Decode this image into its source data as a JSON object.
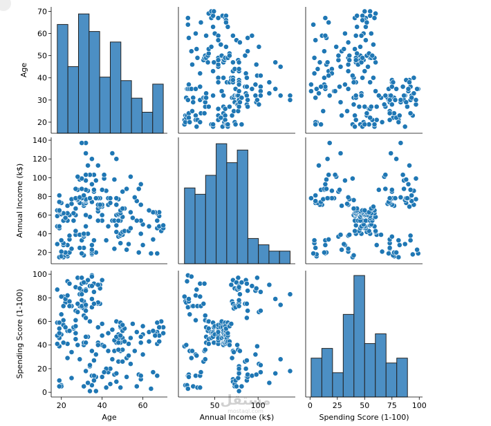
{
  "chart_data": {
    "type": "scatter",
    "kind": "pairplot",
    "variables": [
      "Age",
      "Annual Income (k$)",
      "Spending Score (1-100)"
    ],
    "marker_color": "#1f77b4",
    "bar_color": "#4c8fc4",
    "axes": {
      "Age": {
        "lim": [
          15,
          72
        ],
        "ticks": [
          20,
          30,
          40,
          50,
          60,
          70
        ],
        "xticks": [
          20,
          40,
          60
        ]
      },
      "Annual Income (k$)": {
        "lim": [
          8,
          143
        ],
        "ticks": [
          20,
          40,
          60,
          80,
          100,
          120,
          140
        ],
        "xticks": [
          50,
          100
        ]
      },
      "Spending Score (1-100)": {
        "lim": [
          -4,
          103
        ],
        "ticks": [
          0,
          20,
          40,
          60,
          80,
          100
        ],
        "xticks": [
          0,
          25,
          50,
          75,
          100
        ]
      }
    },
    "histograms": {
      "Age": {
        "edges": [
          18,
          23.2,
          28.4,
          33.6,
          38.8,
          44,
          49.2,
          54.4,
          59.6,
          64.8,
          70
        ],
        "counts": [
          31,
          19,
          34,
          29,
          16,
          26,
          15,
          10,
          6,
          14
        ],
        "ymax": 36
      },
      "Annual Income (k$)": {
        "edges": [
          15,
          27.2,
          39.4,
          51.6,
          63.8,
          76,
          88.2,
          100.4,
          112.6,
          124.8,
          137
        ],
        "counts": [
          24,
          22,
          28,
          38,
          32,
          36,
          8,
          6,
          4,
          4
        ],
        "ymax": 40
      },
      "Spending Score (1-100)": {
        "edges": [
          1,
          10.8,
          20.6,
          30.4,
          40.2,
          50,
          59.8,
          69.6,
          79.4,
          89.2,
          99
        ],
        "counts": [
          16,
          20,
          10,
          34,
          50,
          22,
          26,
          14,
          16,
          0
        ],
        "ymax": 52
      }
    },
    "points": [
      [
        19,
        15,
        39
      ],
      [
        21,
        15,
        81
      ],
      [
        20,
        16,
        6
      ],
      [
        23,
        16,
        77
      ],
      [
        31,
        17,
        40
      ],
      [
        22,
        17,
        76
      ],
      [
        35,
        18,
        6
      ],
      [
        23,
        18,
        94
      ],
      [
        64,
        19,
        3
      ],
      [
        30,
        19,
        72
      ],
      [
        67,
        19,
        14
      ],
      [
        35,
        19,
        99
      ],
      [
        58,
        20,
        15
      ],
      [
        24,
        20,
        77
      ],
      [
        37,
        20,
        13
      ],
      [
        22,
        20,
        79
      ],
      [
        35,
        21,
        35
      ],
      [
        20,
        21,
        66
      ],
      [
        52,
        23,
        29
      ],
      [
        35,
        23,
        98
      ],
      [
        46,
        24,
        35
      ],
      [
        25,
        24,
        73
      ],
      [
        31,
        25,
        5
      ],
      [
        29,
        25,
        73
      ],
      [
        35,
        28,
        14
      ],
      [
        23,
        28,
        82
      ],
      [
        60,
        28,
        32
      ],
      [
        21,
        28,
        61
      ],
      [
        53,
        29,
        31
      ],
      [
        18,
        29,
        87
      ],
      [
        49,
        30,
        4
      ],
      [
        21,
        30,
        73
      ],
      [
        42,
        33,
        4
      ],
      [
        30,
        33,
        92
      ],
      [
        36,
        33,
        14
      ],
      [
        20,
        33,
        81
      ],
      [
        65,
        34,
        17
      ],
      [
        24,
        34,
        73
      ],
      [
        48,
        37,
        26
      ],
      [
        31,
        37,
        75
      ],
      [
        49,
        38,
        35
      ],
      [
        24,
        38,
        92
      ],
      [
        50,
        39,
        36
      ],
      [
        27,
        39,
        61
      ],
      [
        29,
        39,
        28
      ],
      [
        31,
        39,
        65
      ],
      [
        49,
        40,
        55
      ],
      [
        33,
        40,
        47
      ],
      [
        31,
        40,
        42
      ],
      [
        59,
        40,
        42
      ],
      [
        50,
        42,
        52
      ],
      [
        47,
        42,
        60
      ],
      [
        51,
        43,
        54
      ],
      [
        69,
        43,
        60
      ],
      [
        27,
        43,
        45
      ],
      [
        53,
        43,
        41
      ],
      [
        70,
        46,
        50
      ],
      [
        19,
        46,
        46
      ],
      [
        67,
        46,
        51
      ],
      [
        54,
        46,
        46
      ],
      [
        63,
        48,
        51
      ],
      [
        18,
        48,
        59
      ],
      [
        43,
        48,
        50
      ],
      [
        68,
        48,
        48
      ],
      [
        19,
        48,
        59
      ],
      [
        32,
        48,
        47
      ],
      [
        70,
        49,
        55
      ],
      [
        47,
        49,
        42
      ],
      [
        60,
        50,
        49
      ],
      [
        60,
        50,
        56
      ],
      [
        59,
        54,
        47
      ],
      [
        26,
        54,
        54
      ],
      [
        45,
        54,
        53
      ],
      [
        40,
        54,
        48
      ],
      [
        23,
        54,
        52
      ],
      [
        49,
        54,
        42
      ],
      [
        57,
        54,
        51
      ],
      [
        38,
        54,
        55
      ],
      [
        67,
        54,
        41
      ],
      [
        46,
        54,
        44
      ],
      [
        21,
        54,
        57
      ],
      [
        48,
        54,
        46
      ],
      [
        55,
        57,
        58
      ],
      [
        22,
        57,
        55
      ],
      [
        34,
        58,
        60
      ],
      [
        50,
        58,
        46
      ],
      [
        68,
        59,
        55
      ],
      [
        18,
        59,
        41
      ],
      [
        48,
        60,
        49
      ],
      [
        40,
        60,
        40
      ],
      [
        32,
        60,
        42
      ],
      [
        24,
        60,
        52
      ],
      [
        47,
        60,
        47
      ],
      [
        27,
        60,
        50
      ],
      [
        48,
        61,
        42
      ],
      [
        20,
        61,
        49
      ],
      [
        23,
        62,
        41
      ],
      [
        49,
        62,
        48
      ],
      [
        67,
        62,
        59
      ],
      [
        26,
        62,
        55
      ],
      [
        49,
        62,
        56
      ],
      [
        21,
        62,
        42
      ],
      [
        66,
        63,
        50
      ],
      [
        54,
        63,
        46
      ],
      [
        68,
        63,
        43
      ],
      [
        66,
        63,
        48
      ],
      [
        65,
        63,
        52
      ],
      [
        19,
        63,
        54
      ],
      [
        38,
        64,
        42
      ],
      [
        19,
        64,
        46
      ],
      [
        18,
        65,
        48
      ],
      [
        19,
        65,
        50
      ],
      [
        63,
        65,
        43
      ],
      [
        49,
        65,
        59
      ],
      [
        51,
        67,
        43
      ],
      [
        50,
        67,
        57
      ],
      [
        27,
        67,
        56
      ],
      [
        38,
        67,
        40
      ],
      [
        40,
        69,
        58
      ],
      [
        39,
        69,
        91
      ],
      [
        23,
        70,
        29
      ],
      [
        31,
        70,
        77
      ],
      [
        43,
        71,
        35
      ],
      [
        40,
        71,
        95
      ],
      [
        59,
        71,
        11
      ],
      [
        38,
        71,
        75
      ],
      [
        47,
        71,
        9
      ],
      [
        39,
        71,
        75
      ],
      [
        25,
        72,
        34
      ],
      [
        31,
        72,
        71
      ],
      [
        20,
        73,
        5
      ],
      [
        29,
        73,
        88
      ],
      [
        44,
        73,
        7
      ],
      [
        32,
        73,
        73
      ],
      [
        19,
        74,
        10
      ],
      [
        35,
        74,
        72
      ],
      [
        57,
        75,
        5
      ],
      [
        32,
        75,
        93
      ],
      [
        28,
        76,
        40
      ],
      [
        32,
        76,
        87
      ],
      [
        25,
        77,
        12
      ],
      [
        28,
        77,
        97
      ],
      [
        48,
        77,
        36
      ],
      [
        32,
        77,
        74
      ],
      [
        34,
        78,
        22
      ],
      [
        34,
        78,
        90
      ],
      [
        43,
        78,
        17
      ],
      [
        39,
        78,
        88
      ],
      [
        44,
        78,
        20
      ],
      [
        38,
        78,
        76
      ],
      [
        47,
        78,
        16
      ],
      [
        27,
        78,
        89
      ],
      [
        37,
        78,
        1
      ],
      [
        30,
        78,
        78
      ],
      [
        34,
        78,
        1
      ],
      [
        30,
        78,
        73
      ],
      [
        56,
        79,
        35
      ],
      [
        29,
        79,
        83
      ],
      [
        19,
        81,
        5
      ],
      [
        31,
        81,
        93
      ],
      [
        50,
        85,
        26
      ],
      [
        36,
        85,
        75
      ],
      [
        42,
        86,
        20
      ],
      [
        33,
        86,
        95
      ],
      [
        36,
        87,
        27
      ],
      [
        32,
        87,
        63
      ],
      [
        40,
        87,
        13
      ],
      [
        28,
        87,
        75
      ],
      [
        36,
        87,
        10
      ],
      [
        36,
        87,
        92
      ],
      [
        52,
        88,
        13
      ],
      [
        30,
        88,
        86
      ],
      [
        58,
        88,
        15
      ],
      [
        27,
        88,
        69
      ],
      [
        59,
        93,
        14
      ],
      [
        35,
        93,
        90
      ],
      [
        37,
        97,
        32
      ],
      [
        32,
        97,
        86
      ],
      [
        46,
        98,
        15
      ],
      [
        29,
        98,
        88
      ],
      [
        41,
        99,
        39
      ],
      [
        30,
        99,
        97
      ],
      [
        54,
        101,
        24
      ],
      [
        28,
        101,
        68
      ],
      [
        41,
        103,
        17
      ],
      [
        36,
        103,
        85
      ],
      [
        34,
        103,
        23
      ],
      [
        32,
        103,
        69
      ],
      [
        33,
        113,
        8
      ],
      [
        38,
        113,
        91
      ],
      [
        47,
        120,
        16
      ],
      [
        35,
        120,
        79
      ],
      [
        45,
        126,
        28
      ],
      [
        32,
        126,
        74
      ],
      [
        32,
        137,
        18
      ],
      [
        30,
        137,
        83
      ]
    ]
  }
}
